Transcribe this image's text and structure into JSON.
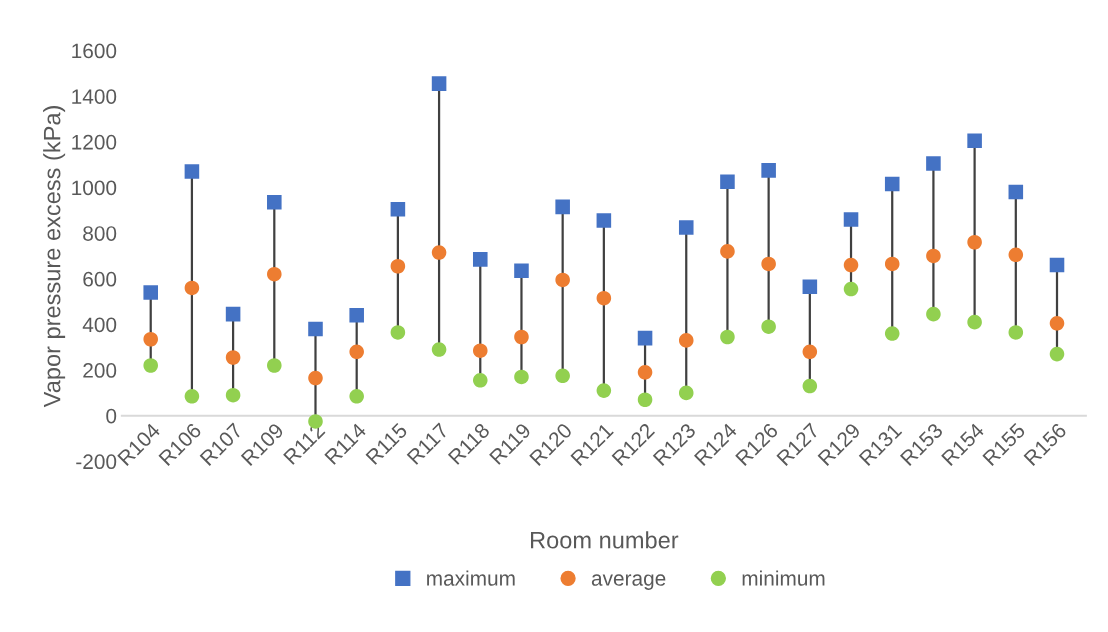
{
  "chart_data": {
    "type": "scatter",
    "xlabel": "Room number",
    "ylabel": "Vapor pressure excess (kPa)",
    "categories": [
      "R104",
      "R106",
      "R107",
      "R109",
      "R112",
      "R114",
      "R115",
      "R117",
      "R118",
      "R119",
      "R120",
      "R121",
      "R122",
      "R123",
      "R124",
      "R126",
      "R127",
      "R129",
      "R131",
      "R153",
      "R154",
      "R155",
      "R156"
    ],
    "series": [
      {
        "name": "maximum",
        "color": "#4472c4",
        "marker": "square",
        "values": [
          540,
          1070,
          445,
          935,
          380,
          440,
          905,
          1455,
          685,
          635,
          915,
          855,
          340,
          825,
          1025,
          1075,
          565,
          860,
          1015,
          1105,
          1205,
          980,
          660
        ]
      },
      {
        "name": "average",
        "color": "#ed7d31",
        "marker": "circle",
        "values": [
          335,
          560,
          255,
          620,
          165,
          280,
          655,
          715,
          285,
          345,
          595,
          515,
          190,
          330,
          720,
          665,
          280,
          660,
          665,
          700,
          760,
          705,
          405
        ]
      },
      {
        "name": "minimum",
        "color": "#92d050",
        "marker": "circle",
        "values": [
          220,
          85,
          90,
          220,
          -25,
          85,
          365,
          290,
          155,
          170,
          175,
          110,
          70,
          100,
          345,
          390,
          130,
          555,
          360,
          445,
          410,
          365,
          270
        ]
      }
    ],
    "ylim": [
      -200,
      1600
    ],
    "yticks": [
      -200,
      0,
      200,
      400,
      600,
      800,
      1000,
      1200,
      1400,
      1600
    ],
    "grid": false,
    "legend": "bottom"
  }
}
